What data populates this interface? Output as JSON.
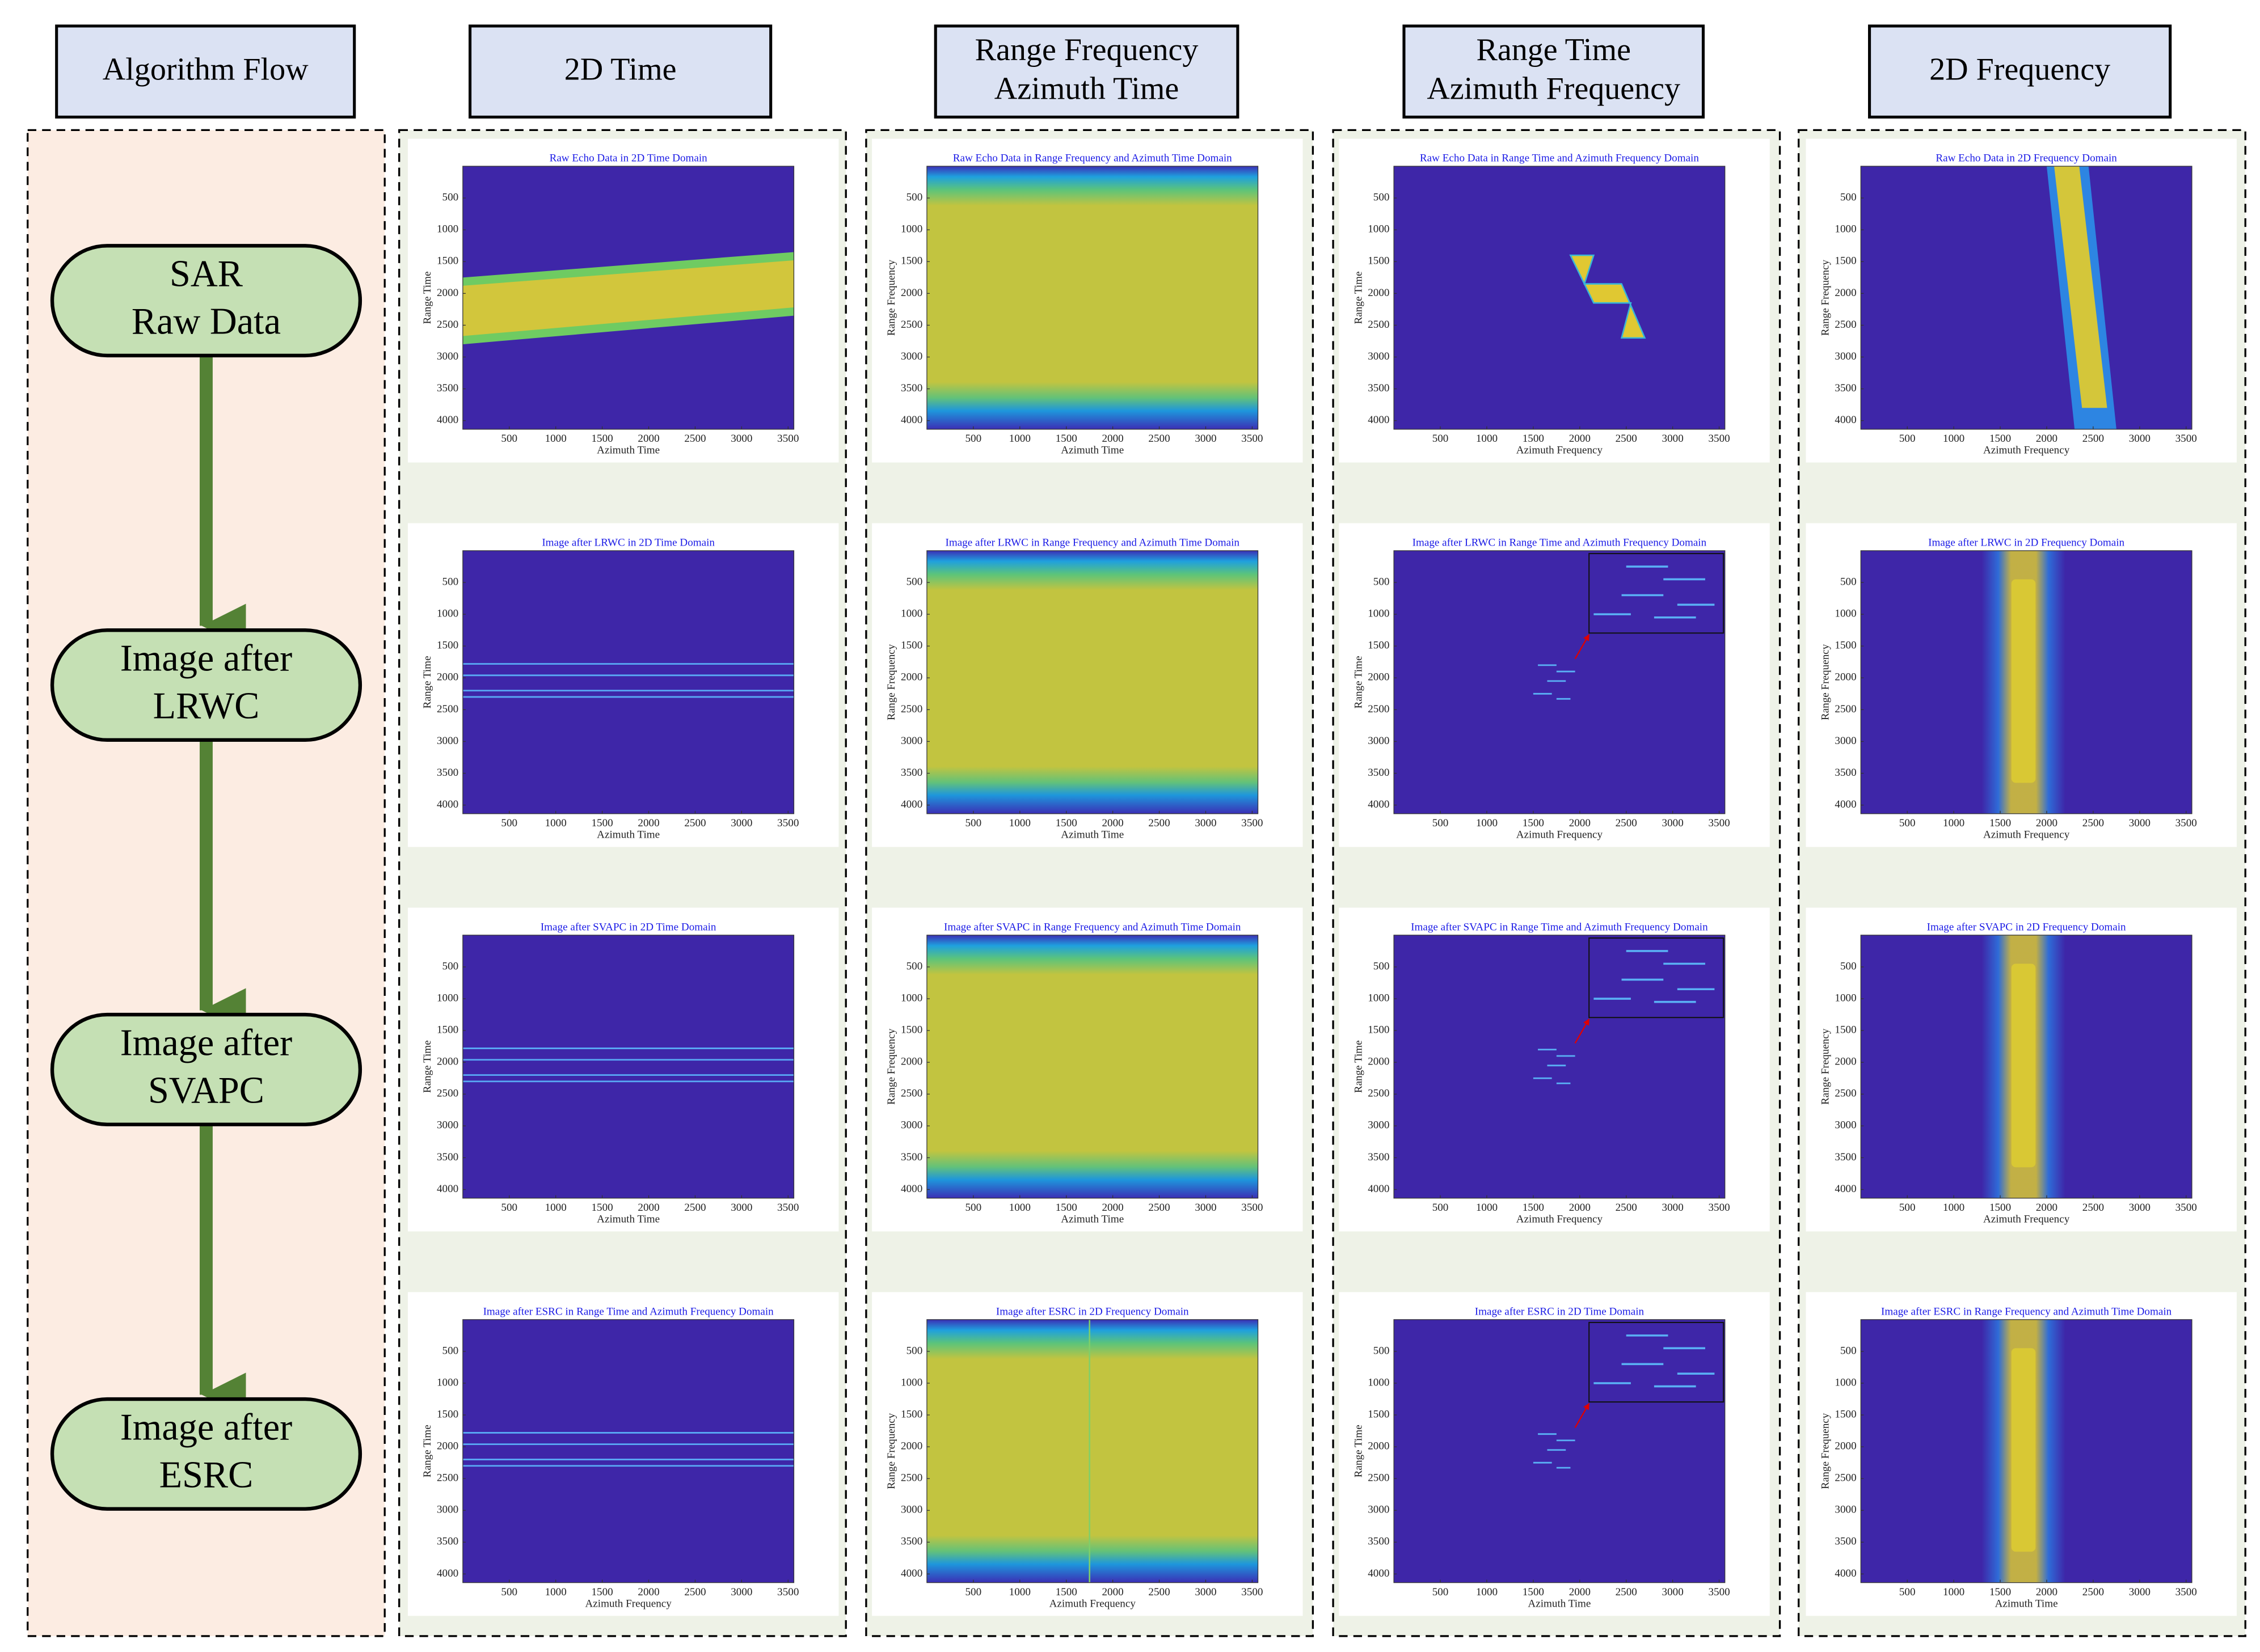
{
  "headers": [
    [
      "Algorithm Flow"
    ],
    [
      "2D Time"
    ],
    [
      "Range Frequency",
      "Azimuth Time"
    ],
    [
      "Range Time",
      "Azimuth Frequency"
    ],
    [
      "2D Frequency"
    ]
  ],
  "flow": [
    [
      "SAR",
      "Raw Data"
    ],
    [
      "Image after",
      "LRWC"
    ],
    [
      "Image after",
      "SVAPC"
    ],
    [
      "Image after",
      "ESRC"
    ]
  ],
  "axis": {
    "xticks": [
      500,
      1000,
      1500,
      2000,
      2500,
      3000,
      3500
    ],
    "yticks": [
      500,
      1000,
      1500,
      2000,
      2500,
      3000,
      3500,
      4000
    ]
  },
  "panels": [
    [
      {
        "title": "Raw Echo Data in 2D Time Domain",
        "ylabel": "Range Time",
        "xlabel": "Azimuth Time"
      },
      {
        "title": "Image after LRWC in 2D Time Domain",
        "ylabel": "Range Time",
        "xlabel": "Azimuth Time"
      },
      {
        "title": "Image after SVAPC in 2D Time Domain",
        "ylabel": "Range Time",
        "xlabel": "Azimuth Time"
      },
      {
        "title": "Image after ESRC in Range Time and Azimuth Frequency Domain",
        "ylabel": "Range Time",
        "xlabel": "Azimuth Frequency"
      }
    ],
    [
      {
        "title": "Raw Echo Data in Range Frequency and Azimuth Time Domain",
        "ylabel": "Range Frequency",
        "xlabel": "Azimuth Time"
      },
      {
        "title": "Image after LRWC in Range Frequency and Azimuth Time Domain",
        "ylabel": "Range Frequency",
        "xlabel": "Azimuth Time"
      },
      {
        "title": "Image after SVAPC in Range Frequency and Azimuth Time Domain",
        "ylabel": "Range Frequency",
        "xlabel": "Azimuth Time"
      },
      {
        "title": "Image after ESRC in 2D Frequency Domain",
        "ylabel": "Range Frequency",
        "xlabel": "Azimuth Frequency"
      }
    ],
    [
      {
        "title": "Raw Echo Data in Range Time and Azimuth Frequency Domain",
        "ylabel": "Range Time",
        "xlabel": "Azimuth Frequency"
      },
      {
        "title": "Image after LRWC in Range Time and Azimuth Frequency Domain",
        "ylabel": "Range Time",
        "xlabel": "Azimuth Frequency"
      },
      {
        "title": "Image after SVAPC in Range Time and Azimuth Frequency Domain",
        "ylabel": "Range Time",
        "xlabel": "Azimuth Frequency"
      },
      {
        "title": "Image after ESRC in 2D Time Domain",
        "ylabel": "Range Time",
        "xlabel": "Azimuth Time"
      }
    ],
    [
      {
        "title": "Raw Echo Data in 2D Frequency Domain",
        "ylabel": "Range Frequency",
        "xlabel": "Azimuth Frequency"
      },
      {
        "title": "Image after LRWC in 2D Frequency Domain",
        "ylabel": "Range Frequency",
        "xlabel": "Azimuth Frequency"
      },
      {
        "title": "Image after SVAPC in 2D Frequency Domain",
        "ylabel": "Range Frequency",
        "xlabel": "Azimuth Frequency"
      },
      {
        "title": "Image after ESRC in Range Frequency and Azimuth Time Domain",
        "ylabel": "Range Frequency",
        "xlabel": "Azimuth Time"
      }
    ]
  ]
}
